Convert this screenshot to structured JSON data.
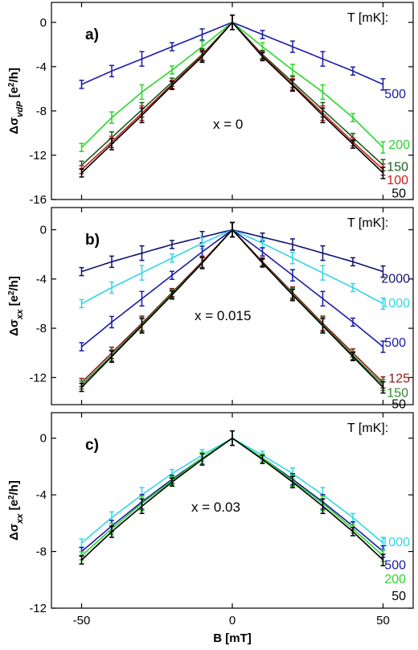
{
  "chart_data": [
    {
      "type": "scatter",
      "panel_label": "a)",
      "annotation": "x = 0",
      "legend_title": "T [mK]:",
      "ylabel": "ΔσvdP [e²/h]",
      "xlabel": "",
      "xlim": [
        -60,
        60
      ],
      "ylim": [
        -16,
        1.8
      ],
      "xticks": [
        -50,
        0,
        50
      ],
      "yticks": [
        0,
        -4,
        -8,
        -12,
        -16
      ],
      "x": [
        -50,
        -40,
        -30,
        -20,
        -10,
        0,
        10,
        20,
        30,
        40,
        50
      ],
      "series": [
        {
          "name": "500",
          "color": "#1a1aa8",
          "values": [
            -5.6,
            -4.4,
            -3.3,
            -2.2,
            -1.1,
            0,
            -1.1,
            -2.2,
            -3.3,
            -4.4,
            -5.6
          ]
        },
        {
          "name": "200",
          "color": "#2bd62b",
          "values": [
            -11.3,
            -8.6,
            -6.3,
            -4.3,
            -2.2,
            0,
            -2.2,
            -4.3,
            -6.3,
            -8.6,
            -11.3
          ]
        },
        {
          "name": "150",
          "color": "#1a5c1a",
          "values": [
            -12.9,
            -10.4,
            -7.9,
            -5.4,
            -2.9,
            0,
            -2.9,
            -5.4,
            -7.9,
            -10.4,
            -12.9
          ]
        },
        {
          "name": "100",
          "color": "#c81e1e",
          "values": [
            -13.3,
            -10.8,
            -8.2,
            -5.6,
            -3.0,
            0,
            -3.0,
            -5.6,
            -8.2,
            -10.8,
            -13.3
          ]
        },
        {
          "name": "50",
          "color": "#000000",
          "values": [
            -13.6,
            -11.0,
            -8.4,
            -5.7,
            -3.1,
            0,
            -3.1,
            -5.7,
            -8.4,
            -11.0,
            -13.6
          ]
        }
      ]
    },
    {
      "type": "scatter",
      "panel_label": "b)",
      "annotation": "x = 0.015",
      "legend_title": "T [mK]:",
      "ylabel": "Δσxx [e²/h]",
      "xlabel": "",
      "xlim": [
        -60,
        60
      ],
      "ylim": [
        -14.2,
        1.8
      ],
      "xticks": [
        -50,
        0,
        50
      ],
      "yticks": [
        0,
        -4,
        -8,
        -12
      ],
      "x": [
        -50,
        -40,
        -30,
        -20,
        -10,
        0,
        10,
        20,
        30,
        40,
        50
      ],
      "series": [
        {
          "name": "2000",
          "color": "#12126e",
          "values": [
            -3.4,
            -2.6,
            -1.9,
            -1.2,
            -0.6,
            0,
            -0.6,
            -1.2,
            -1.9,
            -2.6,
            -3.4
          ]
        },
        {
          "name": "1000",
          "color": "#33d6e6",
          "values": [
            -6.0,
            -4.7,
            -3.5,
            -2.3,
            -1.1,
            0,
            -1.1,
            -2.3,
            -3.5,
            -4.7,
            -6.0
          ]
        },
        {
          "name": "500",
          "color": "#1a1aa8",
          "values": [
            -9.5,
            -7.5,
            -5.6,
            -3.7,
            -1.8,
            0,
            -1.8,
            -3.7,
            -5.6,
            -7.5,
            -9.5
          ]
        },
        {
          "name": "125",
          "color": "#8b1a1a",
          "values": [
            -12.4,
            -10.0,
            -7.6,
            -5.1,
            -2.6,
            0,
            -2.6,
            -5.1,
            -7.6,
            -10.0,
            -12.4
          ]
        },
        {
          "name": "150",
          "color": "#2e8b2e",
          "values": [
            -12.6,
            -10.2,
            -7.7,
            -5.2,
            -2.7,
            0,
            -2.7,
            -5.2,
            -7.7,
            -10.2,
            -12.6
          ]
        },
        {
          "name": "50",
          "color": "#000000",
          "values": [
            -12.8,
            -10.3,
            -7.8,
            -5.3,
            -2.7,
            0,
            -2.7,
            -5.3,
            -7.8,
            -10.3,
            -12.8
          ]
        }
      ]
    },
    {
      "type": "scatter",
      "panel_label": "c)",
      "annotation": "x = 0.03",
      "legend_title": "T [mK]:",
      "ylabel": "Δσxx [e²/h]",
      "xlabel": "B [mT]",
      "xlim": [
        -60,
        60
      ],
      "ylim": [
        -12,
        1.8
      ],
      "xticks": [
        -50,
        0,
        50
      ],
      "yticks": [
        0,
        -4,
        -8,
        -12
      ],
      "x": [
        -50,
        -40,
        -30,
        -20,
        -10,
        0,
        10,
        20,
        30,
        40,
        50
      ],
      "series": [
        {
          "name": "1000",
          "color": "#33d6e6",
          "values": [
            -7.4,
            -5.6,
            -4.0,
            -2.5,
            -1.2,
            0,
            -1.2,
            -2.5,
            -4.0,
            -5.6,
            -7.4
          ]
        },
        {
          "name": "500",
          "color": "#1a1aa8",
          "values": [
            -8.0,
            -6.2,
            -4.5,
            -2.9,
            -1.4,
            0,
            -1.4,
            -2.9,
            -4.5,
            -6.2,
            -8.0
          ]
        },
        {
          "name": "200",
          "color": "#2bd62b",
          "values": [
            -8.3,
            -6.4,
            -4.6,
            -3.0,
            -1.4,
            0,
            -1.4,
            -3.0,
            -4.6,
            -6.4,
            -8.3
          ]
        },
        {
          "name": "50",
          "color": "#000000",
          "values": [
            -8.6,
            -6.6,
            -4.8,
            -3.1,
            -1.5,
            0,
            -1.5,
            -3.1,
            -4.8,
            -6.6,
            -8.6
          ]
        }
      ]
    }
  ]
}
